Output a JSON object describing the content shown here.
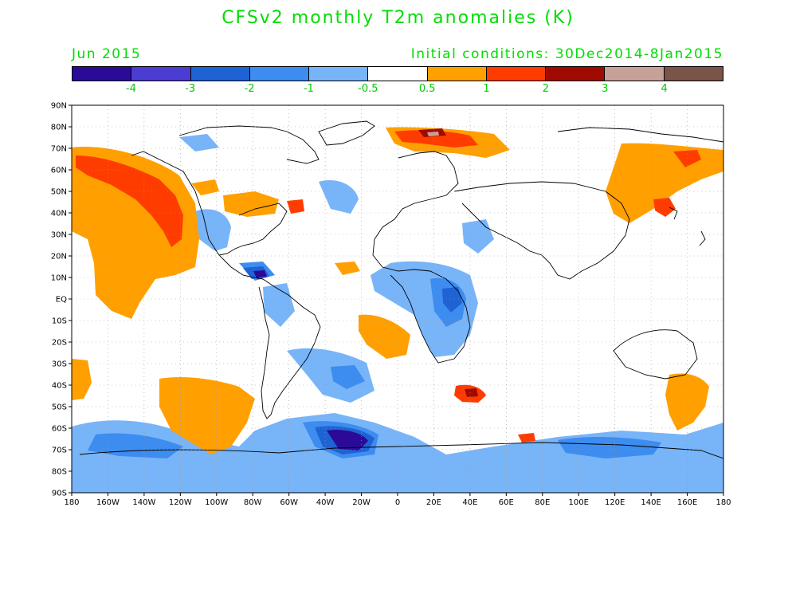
{
  "title": "CFSv2 monthly T2m anomalies (K)",
  "forecast_month": "Jun 2015",
  "initial_conditions": "Initial conditions: 30Dec2014-8Jan2015",
  "colorbar": {
    "colors": [
      "#2a0a96",
      "#4b3dd2",
      "#1f62d4",
      "#3d8cf0",
      "#78b4f8",
      "#ffffff",
      "#ffa000",
      "#ff3c00",
      "#a00a00",
      "#c8a09a",
      "#7a5448"
    ],
    "labels": [
      "-4",
      "-3",
      "-2",
      "-1",
      "-0.5",
      "0.5",
      "1",
      "2",
      "3",
      "4"
    ]
  },
  "lat_labels": [
    "90N",
    "80N",
    "70N",
    "60N",
    "50N",
    "40N",
    "30N",
    "20N",
    "10N",
    "EQ",
    "10S",
    "20S",
    "30S",
    "40S",
    "50S",
    "60S",
    "70S",
    "80S",
    "90S"
  ],
  "lon_labels": [
    "180",
    "160W",
    "140W",
    "120W",
    "100W",
    "80W",
    "60W",
    "40W",
    "20W",
    "0",
    "20E",
    "40E",
    "60E",
    "80E",
    "100E",
    "120E",
    "140E",
    "160E",
    "180"
  ],
  "anomaly_regions": [
    {
      "region": "North Pacific / Gulf of Alaska",
      "level": "1 to 2"
    },
    {
      "region": "NE Pacific off California and Mexico",
      "level": "0.5 to 2"
    },
    {
      "region": "Central America and Caribbean",
      "level": "-1 to -4"
    },
    {
      "region": "Tropical Africa",
      "level": "-0.5 to -2"
    },
    {
      "region": "Antarctic coast near 30W",
      "level": "-2 to -4"
    },
    {
      "region": "Southern Indian Ocean near 40E",
      "level": "1 to 2"
    },
    {
      "region": "Northern Russia / Barents Sea",
      "level": "1 to 3"
    }
  ]
}
